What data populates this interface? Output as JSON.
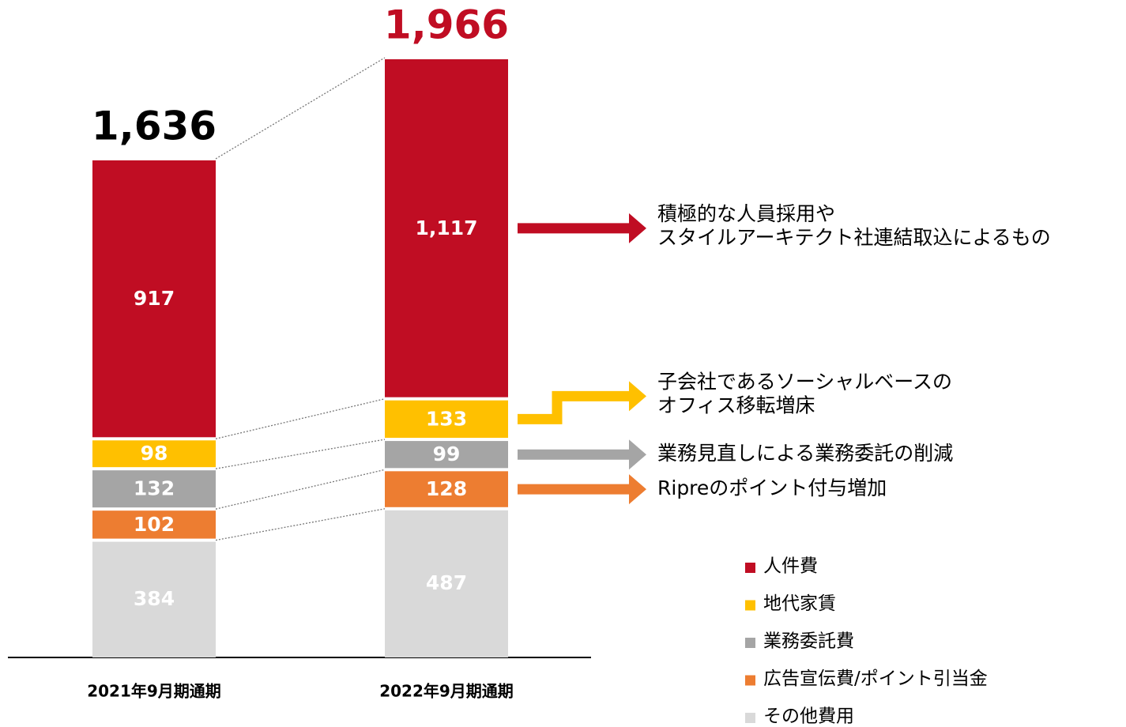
{
  "chart_data": {
    "type": "stacked_bar",
    "categories": [
      "2021年9月期通期",
      "2022年9月期通期"
    ],
    "series": [
      {
        "name": "その他費用",
        "color": "#d9d9d9",
        "values": [
          384,
          487
        ]
      },
      {
        "name": "広告宣伝費/ポイント引当金",
        "color": "#ed7d31",
        "values": [
          102,
          128
        ]
      },
      {
        "name": "業務委託費",
        "color": "#a5a5a5",
        "values": [
          132,
          99
        ]
      },
      {
        "name": "地代家賃",
        "color": "#ffc000",
        "values": [
          98,
          133
        ]
      },
      {
        "name": "人件費",
        "color": "#c00d23",
        "values": [
          917,
          1117
        ],
        "value_labels": [
          "917",
          "1,117"
        ]
      }
    ],
    "totals": [
      1636,
      1966
    ],
    "total_labels": [
      "1,636",
      "1,966"
    ],
    "total_colors": [
      "#000000",
      "#c00d23"
    ],
    "annotations": [
      {
        "lines": [
          "積極的な人員採用や",
          "スタイルアーキテクト社連結取込によるもの"
        ]
      },
      {
        "lines": [
          "子会社であるソーシャルベースの",
          "オフィス移転増床"
        ]
      },
      {
        "lines": [
          "業務見直しによる業務委託の削減"
        ]
      },
      {
        "lines": [
          "Ripreのポイント付与増加"
        ]
      }
    ]
  }
}
